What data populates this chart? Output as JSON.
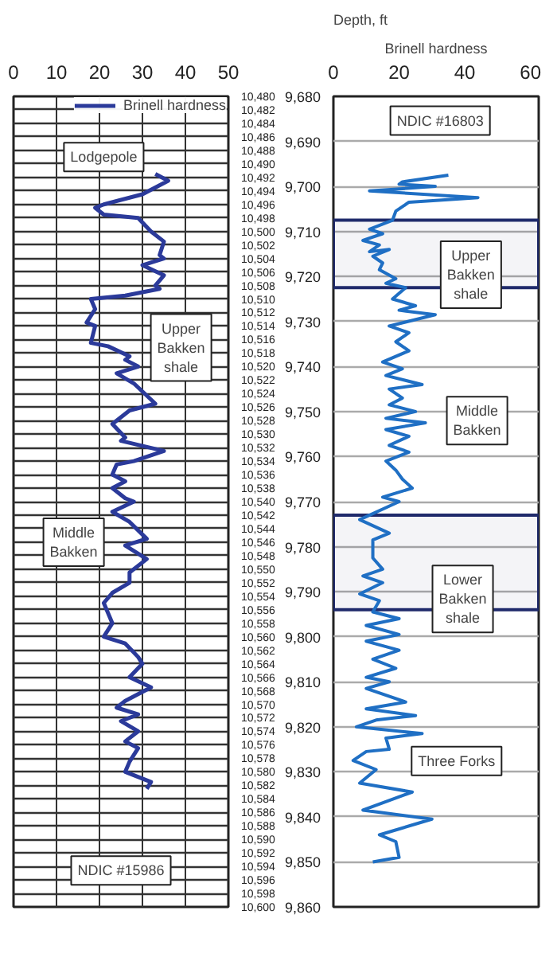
{
  "chart_data": [
    {
      "type": "line",
      "legend": "top right",
      "grid": true,
      "xlim": [
        0,
        50
      ],
      "xticks": [
        0,
        10,
        20,
        30,
        40,
        50
      ],
      "ylim": [
        10600,
        10480
      ],
      "yticks": [
        {
          "value": 10480,
          "label": "10,480"
        },
        {
          "value": 10482,
          "label": "10,482"
        },
        {
          "value": 10484,
          "label": "10,484"
        },
        {
          "value": 10486,
          "label": "10,486"
        },
        {
          "value": 10488,
          "label": "10,488"
        },
        {
          "value": 10490,
          "label": "10,490"
        },
        {
          "value": 10492,
          "label": "10,492"
        },
        {
          "value": 10494,
          "label": "10,494"
        },
        {
          "value": 10496,
          "label": "10,496"
        },
        {
          "value": 10498,
          "label": "10,498"
        },
        {
          "value": 10500,
          "label": "10,500"
        },
        {
          "value": 10502,
          "label": "10,502"
        },
        {
          "value": 10504,
          "label": "10,504"
        },
        {
          "value": 10506,
          "label": "10,506"
        },
        {
          "value": 10508,
          "label": "10,508"
        },
        {
          "value": 10510,
          "label": "10,510"
        },
        {
          "value": 10512,
          "label": "10,512"
        },
        {
          "value": 10514,
          "label": "10,514"
        },
        {
          "value": 10516,
          "label": "10,516"
        },
        {
          "value": 10518,
          "label": "10,518"
        },
        {
          "value": 10520,
          "label": "10,520"
        },
        {
          "value": 10522,
          "label": "10,522"
        },
        {
          "value": 10524,
          "label": "10,524"
        },
        {
          "value": 10526,
          "label": "10,526"
        },
        {
          "value": 10528,
          "label": "10,528"
        },
        {
          "value": 10530,
          "label": "10,530"
        },
        {
          "value": 10532,
          "label": "10,532"
        },
        {
          "value": 10534,
          "label": "10,534"
        },
        {
          "value": 10536,
          "label": "10,536"
        },
        {
          "value": 10538,
          "label": "10,538"
        },
        {
          "value": 10540,
          "label": "10,540"
        },
        {
          "value": 10542,
          "label": "10,542"
        },
        {
          "value": 10544,
          "label": "10,544"
        },
        {
          "value": 10546,
          "label": "10,546"
        },
        {
          "value": 10548,
          "label": "10,548"
        },
        {
          "value": 10550,
          "label": "10,550"
        },
        {
          "value": 10552,
          "label": "10,552"
        },
        {
          "value": 10554,
          "label": "10,554"
        },
        {
          "value": 10556,
          "label": "10,556"
        },
        {
          "value": 10558,
          "label": "10,558"
        },
        {
          "value": 10560,
          "label": "10,560"
        },
        {
          "value": 10562,
          "label": "10,562"
        },
        {
          "value": 10564,
          "label": "10,564"
        },
        {
          "value": 10566,
          "label": "10,566"
        },
        {
          "value": 10568,
          "label": "10,568"
        },
        {
          "value": 10570,
          "label": "10,570"
        },
        {
          "value": 10572,
          "label": "10,572"
        },
        {
          "value": 10574,
          "label": "10,574"
        },
        {
          "value": 10576,
          "label": "10,576"
        },
        {
          "value": 10578,
          "label": "10,578"
        },
        {
          "value": 10580,
          "label": "10,580"
        },
        {
          "value": 10582,
          "label": "10,582"
        },
        {
          "value": 10584,
          "label": "10,584"
        },
        {
          "value": 10586,
          "label": "10,586"
        },
        {
          "value": 10588,
          "label": "10,588"
        },
        {
          "value": 10590,
          "label": "10,590"
        },
        {
          "value": 10592,
          "label": "10,592"
        },
        {
          "value": 10594,
          "label": "10,594"
        },
        {
          "value": 10596,
          "label": "10,596"
        },
        {
          "value": 10598,
          "label": "10,598"
        },
        {
          "value": 10600,
          "label": "10,600"
        }
      ],
      "series": [
        {
          "name": "Brinell hardness",
          "color": "#2b3a9a",
          "x": [
            33,
            36,
            30,
            21,
            19,
            21,
            29,
            32,
            35,
            34,
            35,
            30,
            35,
            33,
            34,
            26,
            18,
            19,
            17,
            19,
            18,
            22,
            27,
            26,
            29,
            24,
            28,
            33,
            27,
            23,
            26,
            25,
            35,
            28,
            24,
            23,
            26,
            23,
            26,
            28,
            23,
            27,
            31,
            26,
            31,
            27,
            27,
            23,
            21,
            23,
            21,
            26,
            29,
            30,
            27,
            32,
            26,
            24,
            29,
            25,
            29,
            26,
            29,
            27,
            26,
            32,
            31
          ],
          "values": [
            10491.5,
            10492.5,
            10494.5,
            10496,
            10496.5,
            10497.5,
            10498,
            10500,
            10501.5,
            10503.5,
            10504,
            10505,
            10506.5,
            10508,
            10508.5,
            10509.5,
            10510,
            10511.5,
            10513.5,
            10514,
            10516.5,
            10517,
            10518.5,
            10519,
            10520,
            10521,
            10522.5,
            10525.5,
            10526.5,
            10528.5,
            10530.5,
            10531,
            10532.5,
            10534,
            10534.5,
            10536,
            10537,
            10538,
            10539.5,
            10540,
            10541.5,
            10543,
            10545.5,
            10546.5,
            10548.5,
            10550.5,
            10552,
            10553.5,
            10555,
            10558,
            10560,
            10561,
            10563,
            10564,
            10566,
            10567.5,
            10569.5,
            10570.5,
            10571.5,
            10572.5,
            10574,
            10575.5,
            10576.5,
            10578.5,
            10580,
            10581.5,
            10582.5
          ]
        }
      ],
      "annotations": [
        "Lodgepole",
        "Upper\nBakken\nshale",
        "Middle\nBakken",
        "NDIC #15986"
      ]
    },
    {
      "type": "line",
      "ylabel": "Depth, ft",
      "xlabel": "Brinell hardness",
      "grid": "y",
      "xlim": [
        0,
        62.5
      ],
      "xticks": [
        0,
        20,
        40,
        60
      ],
      "ylim": [
        9860,
        9680
      ],
      "yticks": [
        {
          "value": 9680,
          "label": "9,680"
        },
        {
          "value": 9690,
          "label": "9,690"
        },
        {
          "value": 9700,
          "label": "9,700"
        },
        {
          "value": 9710,
          "label": "9,710"
        },
        {
          "value": 9720,
          "label": "9,720"
        },
        {
          "value": 9730,
          "label": "9,730"
        },
        {
          "value": 9740,
          "label": "9,740"
        },
        {
          "value": 9750,
          "label": "9,750"
        },
        {
          "value": 9760,
          "label": "9,760"
        },
        {
          "value": 9770,
          "label": "9,770"
        },
        {
          "value": 9780,
          "label": "9,780"
        },
        {
          "value": 9790,
          "label": "9,790"
        },
        {
          "value": 9800,
          "label": "9,800"
        },
        {
          "value": 9810,
          "label": "9,810"
        },
        {
          "value": 9820,
          "label": "9,820"
        },
        {
          "value": 9830,
          "label": "9,830"
        },
        {
          "value": 9840,
          "label": "9,840"
        },
        {
          "value": 9850,
          "label": "9,850"
        },
        {
          "value": 9860,
          "label": "9,860"
        }
      ],
      "series": [
        {
          "color": "#1f6fc4",
          "x": [
            35,
            21,
            20,
            31,
            11,
            44,
            23,
            19,
            18,
            11,
            15,
            9,
            14,
            11,
            17,
            12,
            15,
            14,
            19,
            16,
            22,
            18,
            25,
            20,
            31,
            17,
            23,
            19,
            23,
            15,
            21,
            16,
            27,
            17,
            21,
            17,
            25,
            16,
            28,
            16,
            23,
            17,
            23,
            16,
            19,
            21,
            24,
            15,
            20,
            8,
            17,
            12,
            12,
            15,
            9,
            15,
            8,
            14,
            12,
            20,
            10,
            20,
            10,
            20,
            12,
            19,
            10,
            17,
            10,
            22,
            10,
            25,
            13,
            7,
            27,
            16,
            17,
            10,
            6,
            13,
            8,
            24,
            9,
            30,
            14,
            19,
            20,
            12
          ],
          "values": [
            9697.5,
            9699,
            9699.5,
            9700,
            9701,
            9702.5,
            9703.5,
            9705.5,
            9707.5,
            9709.5,
            9710.5,
            9712,
            9713,
            9714.5,
            9714,
            9715.5,
            9717,
            9718.5,
            9720.5,
            9721.5,
            9722.5,
            9725,
            9726.5,
            9727.5,
            9728.5,
            9731,
            9732.5,
            9734.5,
            9736.5,
            9739,
            9740.5,
            9742,
            9744,
            9745,
            9747,
            9748.5,
            9750,
            9751.5,
            9752.5,
            9754,
            9755.5,
            9757.5,
            9759,
            9761,
            9763,
            9765,
            9767,
            9769,
            9770,
            9774,
            9777,
            9778.5,
            9782.5,
            9785,
            9786.5,
            9788,
            9790.5,
            9792,
            9794.5,
            9796,
            9797.5,
            9799.5,
            9801,
            9803,
            9805,
            9807,
            9809,
            9810,
            9811.5,
            9814.5,
            9816,
            9817.5,
            9818.5,
            9820,
            9821.5,
            9822.5,
            9825,
            9825.5,
            9827.5,
            9829.5,
            9832.5,
            9834.5,
            9838.5,
            9840.5,
            9844,
            9845.5,
            9849,
            9850
          ]
        }
      ],
      "bands": [
        {
          "axis": "y",
          "from": 9707.5,
          "to": 9722.5,
          "color": "#1f2a6b"
        },
        {
          "axis": "y",
          "from": 9773,
          "to": 9794,
          "color": "#1f2a6b"
        }
      ],
      "annotations": [
        "NDIC #16803",
        "Upper\nBakken\nshale",
        "Middle\nBakken",
        "Lower\nBakken\nshale",
        "Three Forks"
      ]
    }
  ]
}
